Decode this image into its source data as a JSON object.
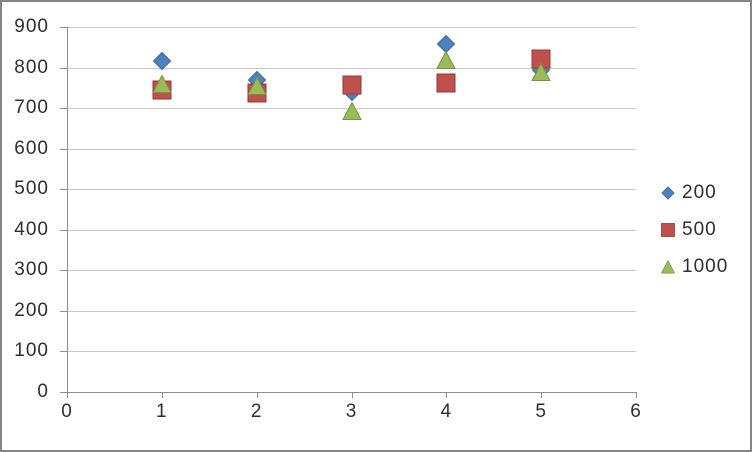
{
  "chart_data": {
    "type": "scatter",
    "title": "",
    "xlabel": "",
    "ylabel": "",
    "xlim": [
      0,
      6
    ],
    "ylim": [
      0,
      900
    ],
    "x_tick_labels": [
      "0",
      "1",
      "2",
      "3",
      "4",
      "5",
      "6"
    ],
    "y_tick_labels": [
      "0",
      "100",
      "200",
      "300",
      "400",
      "500",
      "600",
      "700",
      "800",
      "900"
    ],
    "grid": "horizontal-only",
    "legend_position": "right-middle",
    "series": [
      {
        "name": "200",
        "marker": "diamond",
        "fill": "#4f81bd",
        "stroke": "#3a679c",
        "x": [
          1,
          2,
          3,
          4,
          5
        ],
        "y": [
          815,
          770,
          740,
          857,
          795
        ]
      },
      {
        "name": "500",
        "marker": "square",
        "fill": "#c0504d",
        "stroke": "#953735",
        "x": [
          1,
          2,
          3,
          4,
          5
        ],
        "y": [
          744,
          737,
          757,
          762,
          820
        ]
      },
      {
        "name": "1000",
        "marker": "triangle",
        "fill": "#9bbb59",
        "stroke": "#77933c",
        "x": [
          1,
          2,
          3,
          4,
          5
        ],
        "y": [
          760,
          755,
          694,
          818,
          790
        ]
      }
    ]
  },
  "frame": {
    "border_color": "#858585",
    "background": "#ffffff",
    "gridline_color": "#c9c9c9",
    "axis_color": "#8e8e8e",
    "label_color": "#2e2e2e"
  }
}
